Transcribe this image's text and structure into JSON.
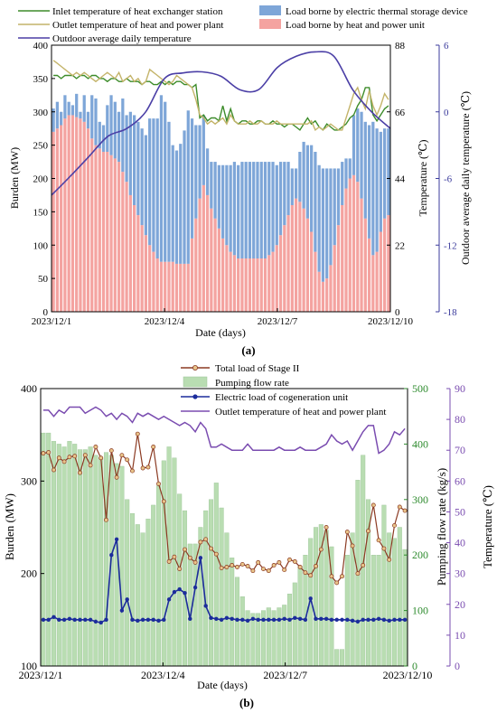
{
  "chart_data": [
    {
      "panel_label": "(a)",
      "type": "bar",
      "xlabel": "Date (days)",
      "x_ticks": [
        "2023/12/1",
        "2023/12/4",
        "2023/12/7",
        "2023/12/10"
      ],
      "ylabel_left": "Burden (MW)",
      "ylim_left": [
        0,
        400
      ],
      "yticks_left": [
        0,
        50,
        100,
        150,
        200,
        250,
        300,
        350,
        400
      ],
      "ylabel_right1": "Temperature (℃)",
      "ylim_right1": [
        0,
        88
      ],
      "yticks_right1": [
        0,
        22,
        44,
        66,
        88
      ],
      "ylabel_right2": "Outdoor average daily temperature (℃)",
      "ylim_right2": [
        -18,
        6
      ],
      "yticks_right2": [
        -18,
        -12,
        -6,
        0,
        6
      ],
      "legend": [
        "Inlet temperature of heat exchanger station",
        "Outlet temperature of heat and power plant",
        "Outdoor average daily temperature",
        "Load borne by electric thermal storage device",
        "Load borne by heat and power unit"
      ],
      "colors": {
        "heat_unit": "#f4a3a0",
        "electric_storage": "#7ea6d8",
        "inlet": "#3d8c2a",
        "outlet": "#c4b46a",
        "outdoor": "#4b3fa6"
      },
      "series": [
        {
          "name": "Load borne by heat and power unit",
          "axis": "left",
          "kind": "bar-stack-base",
          "values": [
            270,
            275,
            280,
            290,
            295,
            295,
            292,
            290,
            285,
            275,
            260,
            250,
            245,
            240,
            240,
            235,
            230,
            225,
            210,
            195,
            175,
            160,
            145,
            130,
            115,
            100,
            90,
            80,
            75,
            75,
            75,
            75,
            72,
            72,
            72,
            72,
            110,
            140,
            170,
            190,
            175,
            155,
            140,
            125,
            110,
            100,
            90,
            85,
            80,
            80,
            80,
            80,
            80,
            80,
            80,
            80,
            85,
            90,
            100,
            115,
            130,
            145,
            160,
            170,
            165,
            155,
            140,
            120,
            90,
            60,
            45,
            50,
            70,
            100,
            130,
            160,
            185,
            200,
            205,
            195,
            170,
            140,
            110,
            85,
            90,
            120,
            140,
            145
          ]
        },
        {
          "name": "Load borne by electric thermal storage device",
          "axis": "left",
          "kind": "bar-stack-top",
          "values": [
            35,
            40,
            20,
            35,
            20,
            15,
            35,
            10,
            40,
            25,
            65,
            70,
            40,
            40,
            70,
            90,
            85,
            75,
            110,
            100,
            125,
            135,
            140,
            145,
            150,
            190,
            200,
            210,
            250,
            240,
            210,
            175,
            170,
            180,
            200,
            230,
            180,
            140,
            110,
            105,
            70,
            70,
            85,
            95,
            110,
            120,
            130,
            140,
            140,
            145,
            145,
            145,
            145,
            145,
            145,
            145,
            140,
            135,
            120,
            110,
            95,
            80,
            55,
            45,
            75,
            100,
            110,
            130,
            150,
            160,
            170,
            165,
            145,
            115,
            85,
            65,
            45,
            30,
            90,
            110,
            130,
            145,
            170,
            200,
            185,
            150,
            135,
            130
          ]
        },
        {
          "name": "Inlet temperature of heat exchanger station",
          "axis": "right1",
          "kind": "line",
          "values": [
            78,
            78,
            77,
            78,
            78,
            78,
            77,
            78,
            78,
            77,
            78,
            78,
            77,
            77,
            76,
            77,
            77,
            76,
            76,
            77,
            76,
            76,
            76,
            75,
            76,
            76,
            75,
            75,
            76,
            75,
            76,
            75,
            76,
            76,
            75,
            75,
            74,
            75,
            64,
            65,
            63,
            64,
            64,
            63,
            68,
            63,
            67,
            63,
            62,
            63,
            63,
            62,
            62,
            63,
            63,
            62,
            62,
            63,
            62,
            62,
            61,
            62,
            62,
            61,
            60,
            62,
            64,
            62,
            63,
            61,
            60,
            62,
            61,
            60,
            60,
            61,
            62,
            64,
            65,
            68,
            70,
            74,
            74,
            65,
            63,
            65,
            67,
            68
          ]
        },
        {
          "name": "Outlet temperature of heat and power plant",
          "axis": "right1",
          "kind": "line",
          "values": [
            83,
            82,
            81,
            80,
            79,
            78,
            79,
            78,
            79,
            78,
            77,
            76,
            77,
            78,
            79,
            78,
            77,
            79,
            76,
            77,
            78,
            76,
            77,
            75,
            76,
            80,
            79,
            78,
            77,
            76,
            75,
            76,
            78,
            77,
            76,
            75,
            74,
            70,
            65,
            64,
            62,
            63,
            62,
            63,
            64,
            62,
            65,
            63,
            62,
            62,
            62,
            63,
            62,
            62,
            63,
            62,
            62,
            62,
            63,
            62,
            62,
            62,
            62,
            62,
            62,
            62,
            62,
            63,
            60,
            61,
            60,
            61,
            62,
            61,
            60,
            60,
            64,
            68,
            72,
            74,
            70,
            67,
            73,
            68,
            65,
            68,
            72,
            70
          ]
        },
        {
          "name": "Outdoor average daily temperature",
          "axis": "right2",
          "kind": "smooth-line",
          "days": [
            0,
            0.5,
            1,
            1.5,
            2,
            2.5,
            3,
            3.5,
            4,
            4.5,
            5,
            5.5,
            6,
            6.5,
            7,
            7.5,
            8,
            8.5,
            9
          ],
          "values": [
            -7.5,
            -5.8,
            -4,
            -2.2,
            -1.5,
            0,
            3,
            3.5,
            3.6,
            3.2,
            2,
            2,
            4,
            5,
            5.4,
            5,
            2,
            0,
            -1.5
          ]
        }
      ]
    },
    {
      "panel_label": "(b)",
      "type": "bar",
      "xlabel": "Date (days)",
      "x_ticks": [
        "2023/12/1",
        "2023/12/4",
        "2023/12/7",
        "2023/12/10"
      ],
      "ylabel_left": "Burden (MW)",
      "ylim_left": [
        100,
        400
      ],
      "yticks_left": [
        100,
        200,
        300,
        400
      ],
      "ylabel_right1": "Pumping flow rate (kg/s)",
      "ylim_right1": [
        0,
        500
      ],
      "yticks_right1": [
        0,
        100,
        200,
        300,
        400,
        500
      ],
      "ylabel_right2": "Temperature (℃)",
      "ylim_right2": [
        0,
        90
      ],
      "yticks_right2": [
        0,
        10,
        20,
        30,
        40,
        50,
        60,
        70,
        80,
        90
      ],
      "legend": [
        "Total load of Stage II",
        "Pumping flow rate",
        "Electric load of cogeneration unit",
        "Outlet temperature of heat and power plant"
      ],
      "colors": {
        "total_load": "#8b3a22",
        "total_load_marker": "#e8c48a",
        "pumping": "#b9ddb2",
        "electric": "#1c2c9c",
        "outlet": "#7a4cb0"
      },
      "series": [
        {
          "name": "Pumping flow rate",
          "axis": "right1",
          "kind": "bar",
          "values": [
            420,
            420,
            405,
            400,
            395,
            405,
            400,
            390,
            390,
            395,
            380,
            375,
            385,
            380,
            365,
            360,
            300,
            275,
            255,
            240,
            265,
            290,
            325,
            370,
            395,
            375,
            310,
            280,
            220,
            220,
            250,
            280,
            300,
            330,
            285,
            240,
            195,
            160,
            125,
            100,
            95,
            95,
            100,
            105,
            100,
            105,
            110,
            130,
            150,
            180,
            200,
            230,
            250,
            255,
            245,
            215,
            30,
            30,
            200,
            240,
            335,
            380,
            300,
            200,
            200,
            290,
            240,
            230,
            250,
            210
          ]
        },
        {
          "name": "Total load of Stage II",
          "axis": "left",
          "kind": "line",
          "values": [
            330,
            331,
            312,
            325,
            321,
            326,
            327,
            309,
            328,
            317,
            337,
            325,
            258,
            333,
            304,
            328,
            323,
            311,
            351,
            314,
            315,
            337,
            297,
            278,
            213,
            218,
            205,
            226,
            217,
            212,
            234,
            237,
            227,
            221,
            206,
            207,
            209,
            207,
            210,
            208,
            203,
            212,
            205,
            203,
            209,
            212,
            204,
            215,
            213,
            207,
            201,
            198,
            208,
            226,
            250,
            197,
            190,
            197,
            245,
            230,
            200,
            209,
            246,
            274,
            236,
            227,
            215,
            252,
            272,
            268
          ]
        },
        {
          "name": "Electric load of cogeneration unit",
          "axis": "left",
          "kind": "line",
          "values": [
            150,
            150,
            153,
            150,
            150,
            151,
            150,
            150,
            150,
            150,
            148,
            147,
            150,
            220,
            237,
            160,
            172,
            150,
            149,
            150,
            150,
            150,
            149,
            150,
            172,
            180,
            183,
            179,
            151,
            185,
            217,
            165,
            152,
            151,
            150,
            152,
            151,
            150,
            150,
            149,
            151,
            150,
            150,
            150,
            150,
            150,
            151,
            150,
            152,
            151,
            150,
            173,
            151,
            151,
            151,
            150,
            150,
            150,
            150,
            149,
            148,
            150,
            150,
            150,
            151,
            150,
            149,
            150,
            150,
            150
          ]
        },
        {
          "name": "Outlet temperature of heat and power plant",
          "axis": "right2",
          "kind": "line",
          "values": [
            83,
            83,
            81,
            83,
            82,
            84,
            84,
            84,
            82,
            83,
            84,
            83,
            81,
            82,
            80,
            82,
            81,
            79,
            82,
            81,
            82,
            81,
            80,
            81,
            80,
            79,
            78,
            79,
            78,
            76,
            79,
            77,
            71,
            71,
            72,
            71,
            70,
            70,
            70,
            72,
            70,
            70,
            70,
            70,
            70,
            71,
            70,
            70,
            70,
            71,
            70,
            70,
            70,
            71,
            72,
            75,
            73,
            72,
            73,
            70,
            73,
            76,
            78,
            78,
            69,
            70,
            72,
            76,
            75,
            77
          ]
        }
      ]
    }
  ]
}
